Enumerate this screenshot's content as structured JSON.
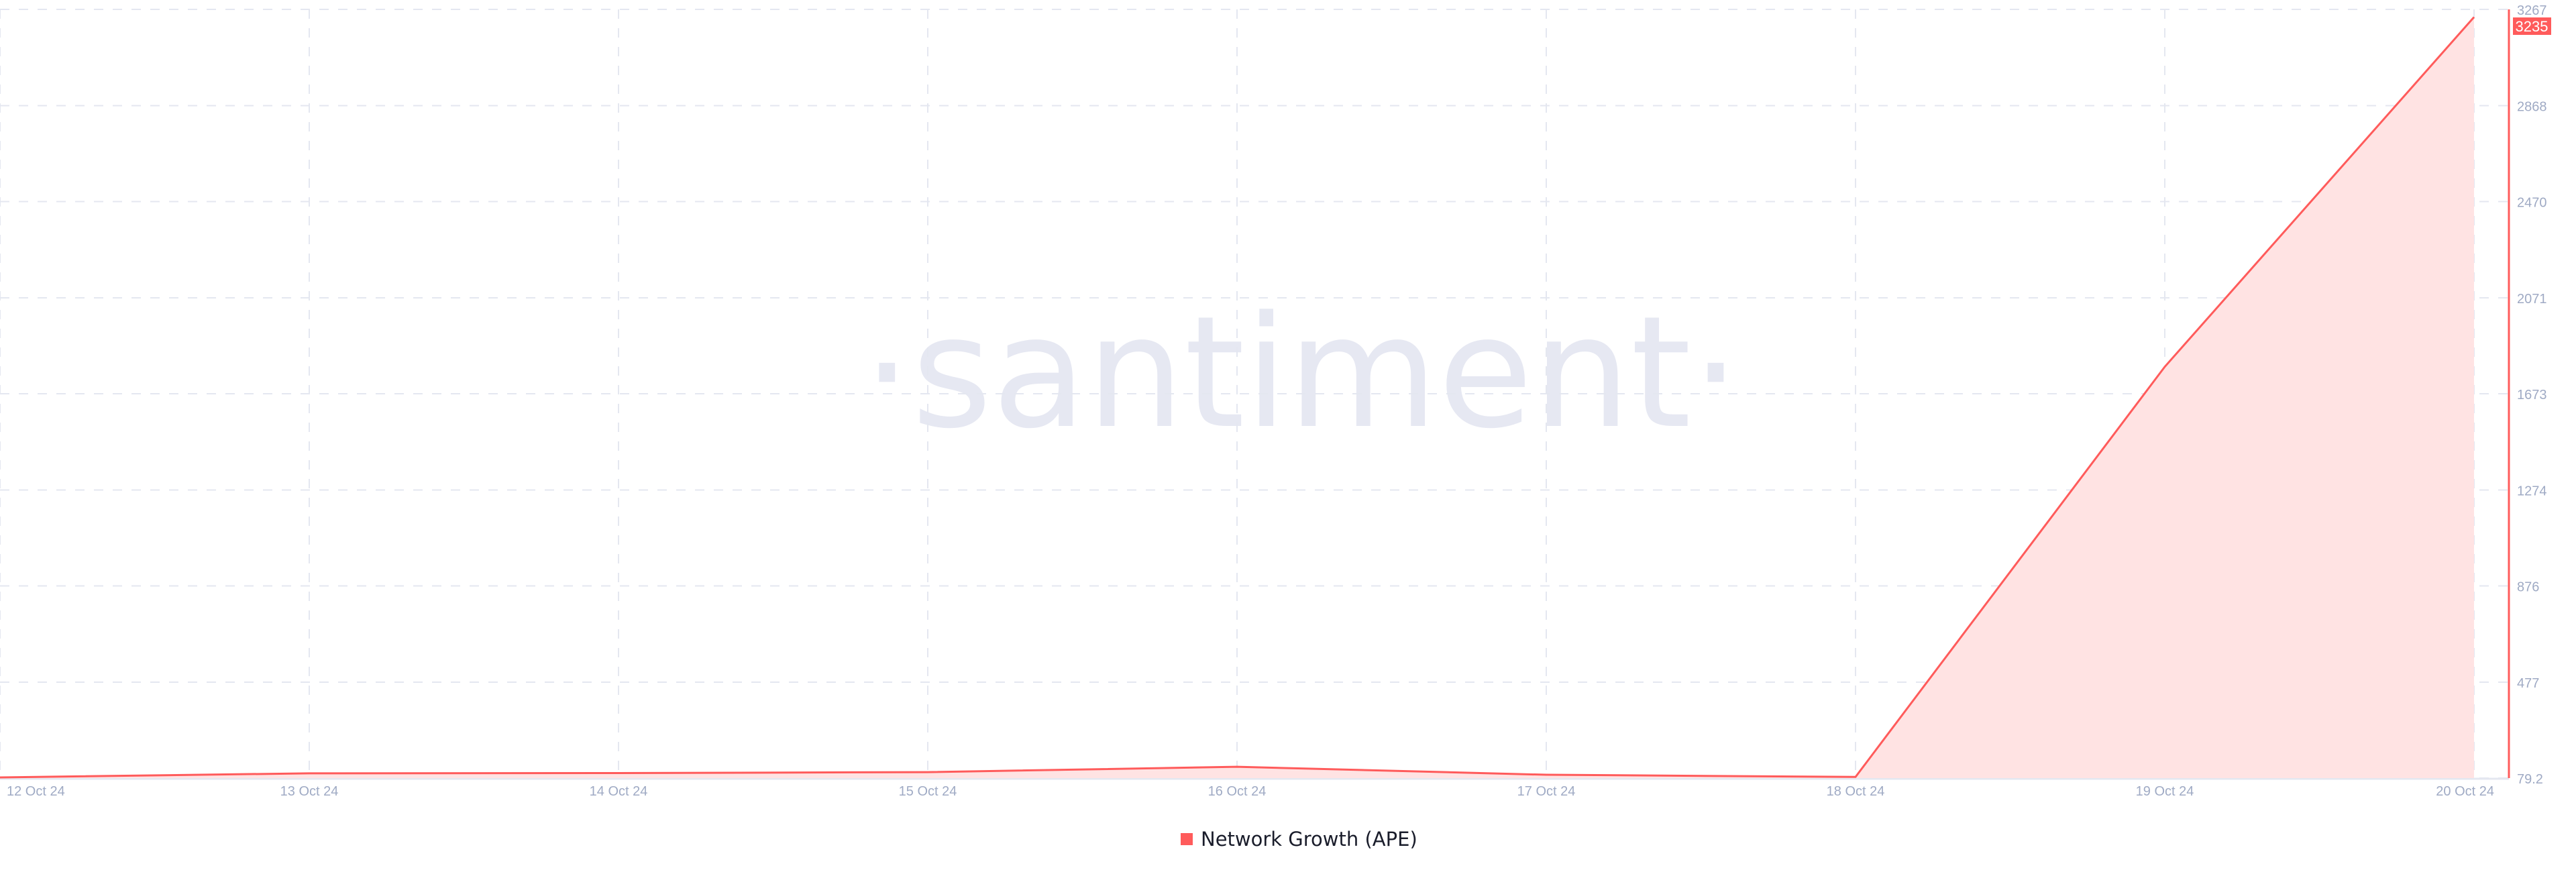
{
  "watermark": "·santiment·",
  "chart_data": {
    "type": "area",
    "title": "",
    "xlabel": "",
    "ylabel": "",
    "categories": [
      "12 Oct 24",
      "13 Oct 24",
      "14 Oct 24",
      "15 Oct 24",
      "16 Oct 24",
      "17 Oct 24",
      "18 Oct 24",
      "19 Oct 24",
      "20 Oct 24"
    ],
    "series": [
      {
        "name": "Network Growth (APE)",
        "color": "#ff5b5b",
        "fill": "#ffe3e3",
        "values": [
          82,
          99,
          100,
          104,
          126,
          93,
          84,
          1785,
          3235
        ]
      }
    ],
    "ylim": [
      79.2,
      3267
    ],
    "yticks": [
      "79.2",
      "477",
      "876",
      "1274",
      "1673",
      "2071",
      "2470",
      "2868",
      "3267"
    ],
    "last_value_label": "3235",
    "grid": true,
    "legend_position": "bottom-center"
  }
}
